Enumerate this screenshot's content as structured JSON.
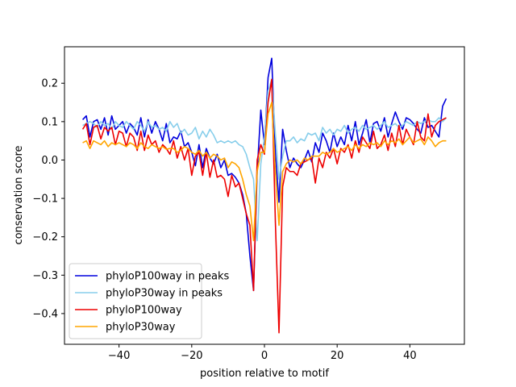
{
  "chart_data": {
    "type": "line",
    "title": "",
    "xlabel": "position relative to motif",
    "ylabel": "conservation score",
    "xlim": [
      -55,
      55
    ],
    "ylim": [
      -0.48,
      0.295
    ],
    "xticks": [
      -40,
      -20,
      0,
      20,
      40
    ],
    "xtick_labels": [
      "−40",
      "−20",
      "0",
      "20",
      "40"
    ],
    "yticks": [
      -0.4,
      -0.3,
      -0.2,
      -0.1,
      0.0,
      0.1,
      0.2
    ],
    "ytick_labels": [
      "−0.4",
      "−0.3",
      "−0.2",
      "−0.1",
      "0.0",
      "0.1",
      "0.2"
    ],
    "grid": false,
    "legend_position": "lower-left",
    "x": [
      -50,
      -49,
      -48,
      -47,
      -46,
      -45,
      -44,
      -43,
      -42,
      -41,
      -40,
      -39,
      -38,
      -37,
      -36,
      -35,
      -34,
      -33,
      -32,
      -31,
      -30,
      -29,
      -28,
      -27,
      -26,
      -25,
      -24,
      -23,
      -22,
      -21,
      -20,
      -19,
      -18,
      -17,
      -16,
      -15,
      -14,
      -13,
      -12,
      -11,
      -10,
      -9,
      -8,
      -7,
      -6,
      -5,
      -4,
      -3,
      -2,
      -1,
      0,
      1,
      2,
      3,
      4,
      5,
      6,
      7,
      8,
      9,
      10,
      11,
      12,
      13,
      14,
      15,
      16,
      17,
      18,
      19,
      20,
      21,
      22,
      23,
      24,
      25,
      26,
      27,
      28,
      29,
      30,
      31,
      32,
      33,
      34,
      35,
      36,
      37,
      38,
      39,
      40,
      41,
      42,
      43,
      44,
      45,
      46,
      47,
      48,
      49,
      50
    ],
    "series": [
      {
        "name": "phyloP100way in peaks",
        "color": "#0000dd",
        "values": [
          0.105,
          0.115,
          0.06,
          0.1,
          0.105,
          0.08,
          0.11,
          0.065,
          0.115,
          0.08,
          0.09,
          0.1,
          0.07,
          0.095,
          0.085,
          0.065,
          0.11,
          0.06,
          0.105,
          0.07,
          0.1,
          0.08,
          0.05,
          0.095,
          0.045,
          0.06,
          0.055,
          0.075,
          0.035,
          0.045,
          0.02,
          -0.015,
          0.04,
          -0.02,
          0.03,
          0.005,
          -0.01,
          0.015,
          -0.02,
          0.0,
          -0.04,
          -0.035,
          -0.045,
          -0.06,
          -0.09,
          -0.14,
          -0.25,
          -0.34,
          -0.03,
          0.13,
          0.04,
          0.215,
          0.265,
          0.02,
          -0.11,
          0.08,
          0.025,
          -0.02,
          0.005,
          -0.01,
          -0.02,
          0.0,
          0.025,
          -0.005,
          0.045,
          0.02,
          0.07,
          0.05,
          0.02,
          0.07,
          0.035,
          0.06,
          0.04,
          0.09,
          0.05,
          0.1,
          0.04,
          0.07,
          0.105,
          0.045,
          0.095,
          0.1,
          0.075,
          0.11,
          0.06,
          0.095,
          0.125,
          0.1,
          0.08,
          0.11,
          0.105,
          0.095,
          0.08,
          0.07,
          0.11,
          0.085,
          0.09,
          0.075,
          0.06,
          0.14,
          0.16
        ]
      },
      {
        "name": "phyloP30way in peaks",
        "color": "#87ceeb",
        "values": [
          0.09,
          0.095,
          0.1,
          0.095,
          0.085,
          0.1,
          0.09,
          0.095,
          0.08,
          0.1,
          0.09,
          0.085,
          0.1,
          0.09,
          0.08,
          0.1,
          0.09,
          0.075,
          0.1,
          0.085,
          0.09,
          0.08,
          0.085,
          0.075,
          0.1,
          0.085,
          0.095,
          0.07,
          0.08,
          0.065,
          0.07,
          0.085,
          0.055,
          0.075,
          0.06,
          0.08,
          0.065,
          0.045,
          0.05,
          0.045,
          0.05,
          0.045,
          0.05,
          0.04,
          0.035,
          0.015,
          -0.02,
          -0.05,
          -0.21,
          -0.01,
          0.06,
          0.18,
          0.21,
          0.07,
          -0.05,
          0.01,
          0.05,
          0.05,
          0.06,
          0.045,
          0.055,
          0.05,
          0.07,
          0.065,
          0.07,
          0.05,
          0.085,
          0.07,
          0.08,
          0.065,
          0.08,
          0.075,
          0.09,
          0.07,
          0.08,
          0.085,
          0.075,
          0.09,
          0.08,
          0.085,
          0.09,
          0.08,
          0.09,
          0.1,
          0.085,
          0.09,
          0.095,
          0.085,
          0.09,
          0.1,
          0.095,
          0.09,
          0.1,
          0.095,
          0.1,
          0.105,
          0.1,
          0.1,
          0.11,
          0.1,
          0.11
        ]
      },
      {
        "name": "phyloP100way",
        "color": "#ee0000",
        "values": [
          0.08,
          0.095,
          0.04,
          0.085,
          0.09,
          0.055,
          0.085,
          0.075,
          0.085,
          0.04,
          0.075,
          0.07,
          0.035,
          0.07,
          0.06,
          0.025,
          0.075,
          0.025,
          0.065,
          0.04,
          0.05,
          0.02,
          0.04,
          0.03,
          0.015,
          0.05,
          0.005,
          0.035,
          0.0,
          0.03,
          -0.04,
          0.01,
          0.02,
          -0.04,
          0.02,
          -0.045,
          0.0,
          -0.045,
          -0.04,
          -0.05,
          -0.095,
          -0.04,
          -0.07,
          -0.06,
          -0.1,
          -0.14,
          -0.17,
          -0.34,
          0.0,
          0.04,
          0.015,
          0.15,
          0.21,
          -0.16,
          -0.45,
          -0.07,
          -0.02,
          -0.03,
          -0.03,
          -0.04,
          -0.01,
          -0.005,
          0.0,
          0.005,
          -0.06,
          0.005,
          -0.02,
          0.02,
          0.005,
          0.03,
          -0.01,
          0.03,
          0.02,
          0.04,
          0.005,
          0.05,
          0.02,
          0.06,
          0.045,
          0.03,
          0.075,
          0.03,
          0.04,
          0.065,
          0.025,
          0.07,
          0.035,
          0.09,
          0.04,
          0.08,
          0.06,
          0.04,
          0.1,
          0.06,
          0.05,
          0.12,
          0.06,
          0.09,
          0.1,
          0.105,
          0.11
        ]
      },
      {
        "name": "phyloP30way",
        "color": "#ffa500",
        "values": [
          0.045,
          0.05,
          0.03,
          0.05,
          0.045,
          0.04,
          0.05,
          0.035,
          0.045,
          0.04,
          0.045,
          0.04,
          0.035,
          0.045,
          0.04,
          0.03,
          0.045,
          0.035,
          0.03,
          0.04,
          0.035,
          0.03,
          0.035,
          0.028,
          0.03,
          0.03,
          0.02,
          0.025,
          0.035,
          0.03,
          0.02,
          0.015,
          0.025,
          0.01,
          0.02,
          0.005,
          0.015,
          0.01,
          0.0,
          0.005,
          -0.02,
          -0.005,
          -0.01,
          -0.02,
          -0.05,
          -0.09,
          -0.12,
          -0.21,
          -0.03,
          0.02,
          0.02,
          0.12,
          0.15,
          -0.03,
          -0.17,
          -0.03,
          -0.01,
          0.0,
          -0.005,
          0.0,
          -0.01,
          0.005,
          0.0,
          0.01,
          0.01,
          0.01,
          0.02,
          0.015,
          0.02,
          0.03,
          0.02,
          0.025,
          0.03,
          0.035,
          0.025,
          0.04,
          0.03,
          0.04,
          0.035,
          0.045,
          0.04,
          0.045,
          0.035,
          0.05,
          0.04,
          0.05,
          0.045,
          0.055,
          0.04,
          0.05,
          0.06,
          0.045,
          0.05,
          0.055,
          0.04,
          0.06,
          0.05,
          0.035,
          0.045,
          0.05,
          0.05
        ]
      }
    ]
  }
}
